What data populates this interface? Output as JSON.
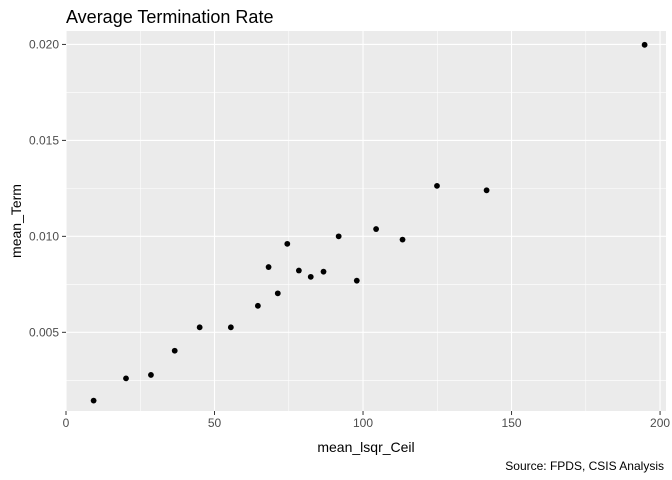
{
  "chart_data": {
    "type": "scatter",
    "title": "Average Termination Rate",
    "xlabel": "mean_lsqr_Ceil",
    "ylabel": "mean_Term",
    "caption": "Source: FPDS, CSIS Analysis",
    "xlim": [
      0,
      202
    ],
    "ylim": [
      0.0009,
      0.0207
    ],
    "x_ticks": [
      0,
      50,
      100,
      150,
      200
    ],
    "x_tick_labels": [
      "0",
      "50",
      "100",
      "150",
      "200"
    ],
    "y_ticks": [
      0.005,
      0.01,
      0.015,
      0.02
    ],
    "y_tick_labels": [
      "0.005",
      "0.010",
      "0.015",
      "0.020"
    ],
    "grid": true,
    "background": "#EBEBEB",
    "gridline_color": "#FFFFFF",
    "point_color": "#000000",
    "points": [
      {
        "x": 9.3,
        "y": 0.00144
      },
      {
        "x": 20.2,
        "y": 0.0026
      },
      {
        "x": 28.6,
        "y": 0.00278
      },
      {
        "x": 36.6,
        "y": 0.00404
      },
      {
        "x": 45.0,
        "y": 0.00526
      },
      {
        "x": 55.5,
        "y": 0.00526
      },
      {
        "x": 64.6,
        "y": 0.00638
      },
      {
        "x": 68.2,
        "y": 0.0084
      },
      {
        "x": 71.3,
        "y": 0.00703
      },
      {
        "x": 74.5,
        "y": 0.00961
      },
      {
        "x": 78.4,
        "y": 0.00822
      },
      {
        "x": 82.4,
        "y": 0.00789
      },
      {
        "x": 86.7,
        "y": 0.00816
      },
      {
        "x": 91.8,
        "y": 0.01
      },
      {
        "x": 97.9,
        "y": 0.00769
      },
      {
        "x": 104.4,
        "y": 0.01038
      },
      {
        "x": 113.3,
        "y": 0.00983
      },
      {
        "x": 124.9,
        "y": 0.01263
      },
      {
        "x": 141.6,
        "y": 0.0124
      },
      {
        "x": 194.8,
        "y": 0.01998
      }
    ]
  }
}
